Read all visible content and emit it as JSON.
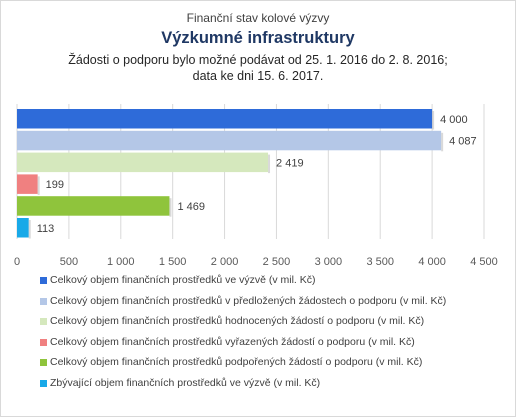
{
  "chart_data": {
    "type": "bar",
    "orientation": "horizontal",
    "title_lines": [
      "Finanční stav kolové výzvy",
      "Výzkumné infrastruktury",
      "Žádosti o podporu bylo možné  podávat od 25. 1. 2016 do 2. 8. 2016;",
      "data ke dni 15. 6. 2017."
    ],
    "xlim": [
      0,
      4500
    ],
    "xticks": [
      "0",
      "500",
      "1 000",
      "1 500",
      "2 000",
      "2 500",
      "3 000",
      "3 500",
      "4 000",
      "4 500"
    ],
    "xtick_values": [
      0,
      500,
      1000,
      1500,
      2000,
      2500,
      3000,
      3500,
      4000,
      4500
    ],
    "gridlines": true,
    "legend_position": "bottom",
    "series": [
      {
        "name": "Celkový objem finančních prostředků ve výzvě (v mil. Kč)",
        "value": 4000,
        "label": "4 000",
        "color": "#2e6bd9"
      },
      {
        "name": "Celkový objem finančních prostředků v předložených žádostech o podporu (v mil. Kč)",
        "value": 4087,
        "label": "4 087",
        "color": "#b4c7e7"
      },
      {
        "name": "Celkový objem finančních prostředků hodnocených žádostí o podporu (v mil. Kč)",
        "value": 2419,
        "label": "2 419",
        "color": "#d5e8bd"
      },
      {
        "name": "Celkový objem finančních prostředků vyřazených žádostí o podporu (v mil. Kč)",
        "value": 199,
        "label": "199",
        "color": "#f08080"
      },
      {
        "name": "Celkový objem finančních prostředků podpořených žádostí o podporu (v mil. Kč)",
        "value": 1469,
        "label": "1 469",
        "color": "#8fc43c"
      },
      {
        "name": "Zbývající objem finančních prostředků ve výzvě (v mil. Kč)",
        "value": 113,
        "label": "113",
        "color": "#18a9e8"
      }
    ]
  }
}
